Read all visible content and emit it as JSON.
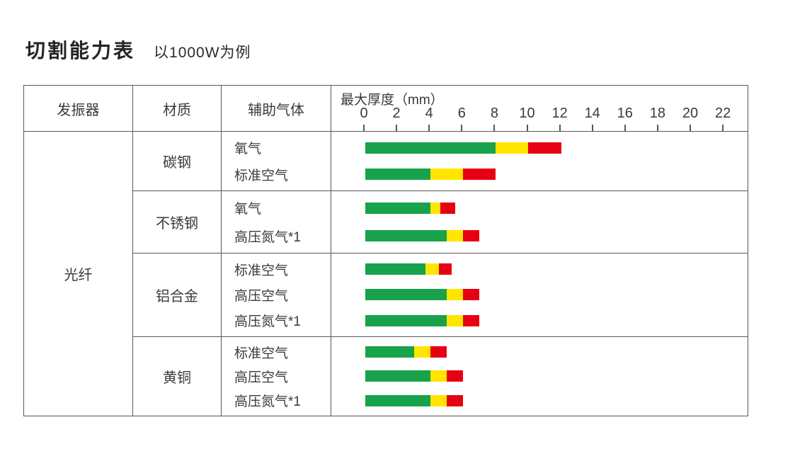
{
  "title": "切割能力表",
  "subtitle": "以1000W为例",
  "colors": {
    "green": "#18a24b",
    "yellow": "#ffe500",
    "red": "#e60012",
    "line": "#595757",
    "text": "#3a3a3a"
  },
  "table": {
    "headers": {
      "oscillator": "发振器",
      "material": "材质",
      "gas": "辅助气体",
      "thickness": "最大厚度（mm）"
    },
    "oscillator": "光纤",
    "axis": {
      "ticks": [
        0,
        2,
        4,
        6,
        8,
        10,
        12,
        14,
        16,
        18,
        20,
        22
      ],
      "unit": "mm",
      "max": 22
    },
    "groups": [
      {
        "material": "碳钢",
        "rows": [
          {
            "gas": "氧气",
            "segments": [
              {
                "color": "green",
                "from": 0,
                "to": 8
              },
              {
                "color": "yellow",
                "from": 8,
                "to": 10
              },
              {
                "color": "red",
                "from": 10,
                "to": 12
              }
            ]
          },
          {
            "gas": "标准空气",
            "segments": [
              {
                "color": "green",
                "from": 0,
                "to": 4
              },
              {
                "color": "yellow",
                "from": 4,
                "to": 6
              },
              {
                "color": "red",
                "from": 6,
                "to": 8
              }
            ]
          }
        ]
      },
      {
        "material": "不锈钢",
        "rows": [
          {
            "gas": "氧气",
            "segments": [
              {
                "color": "green",
                "from": 0,
                "to": 4
              },
              {
                "color": "yellow",
                "from": 4,
                "to": 4.6
              },
              {
                "color": "red",
                "from": 4.6,
                "to": 5.5
              }
            ]
          },
          {
            "gas": "高压氮气*1",
            "segments": [
              {
                "color": "green",
                "from": 0,
                "to": 5
              },
              {
                "color": "yellow",
                "from": 5,
                "to": 6
              },
              {
                "color": "red",
                "from": 6,
                "to": 7
              }
            ]
          }
        ]
      },
      {
        "material": "铝合金",
        "rows": [
          {
            "gas": "标准空气",
            "segments": [
              {
                "color": "green",
                "from": 0,
                "to": 3.7
              },
              {
                "color": "yellow",
                "from": 3.7,
                "to": 4.5
              },
              {
                "color": "red",
                "from": 4.5,
                "to": 5.3
              }
            ]
          },
          {
            "gas": "高压空气",
            "segments": [
              {
                "color": "green",
                "from": 0,
                "to": 5
              },
              {
                "color": "yellow",
                "from": 5,
                "to": 6
              },
              {
                "color": "red",
                "from": 6,
                "to": 7
              }
            ]
          },
          {
            "gas": "高压氮气*1",
            "segments": [
              {
                "color": "green",
                "from": 0,
                "to": 5
              },
              {
                "color": "yellow",
                "from": 5,
                "to": 6
              },
              {
                "color": "red",
                "from": 6,
                "to": 7
              }
            ]
          }
        ]
      },
      {
        "material": "黄铜",
        "rows": [
          {
            "gas": "标准空气",
            "segments": [
              {
                "color": "green",
                "from": 0,
                "to": 3
              },
              {
                "color": "yellow",
                "from": 3,
                "to": 4
              },
              {
                "color": "red",
                "from": 4,
                "to": 5
              }
            ]
          },
          {
            "gas": "高压空气",
            "segments": [
              {
                "color": "green",
                "from": 0,
                "to": 4
              },
              {
                "color": "yellow",
                "from": 4,
                "to": 5
              },
              {
                "color": "red",
                "from": 5,
                "to": 6
              }
            ]
          },
          {
            "gas": "高压氮气*1",
            "segments": [
              {
                "color": "green",
                "from": 0,
                "to": 4
              },
              {
                "color": "yellow",
                "from": 4,
                "to": 5
              },
              {
                "color": "red",
                "from": 5,
                "to": 6
              }
            ]
          }
        ]
      }
    ]
  },
  "chart_data": {
    "type": "bar",
    "title": "切割能力表 以1000W为例",
    "xlabel": "最大厚度（mm）",
    "xlim": [
      0,
      22
    ],
    "x_ticks": [
      0,
      2,
      4,
      6,
      8,
      10,
      12,
      14,
      16,
      18,
      20,
      22
    ],
    "stacked": true,
    "orientation": "horizontal",
    "grid": false,
    "legend": false,
    "segment_colors": {
      "green": "#18a24b",
      "yellow": "#ffe500",
      "red": "#e60012"
    },
    "bars": [
      {
        "oscillator": "光纤",
        "material": "碳钢",
        "gas": "氧气",
        "green_to": 8,
        "yellow_to": 10,
        "red_to": 12
      },
      {
        "oscillator": "光纤",
        "material": "碳钢",
        "gas": "标准空气",
        "green_to": 4,
        "yellow_to": 6,
        "red_to": 8
      },
      {
        "oscillator": "光纤",
        "material": "不锈钢",
        "gas": "氧气",
        "green_to": 4,
        "yellow_to": 4.6,
        "red_to": 5.5
      },
      {
        "oscillator": "光纤",
        "material": "不锈钢",
        "gas": "高压氮气*1",
        "green_to": 5,
        "yellow_to": 6,
        "red_to": 7
      },
      {
        "oscillator": "光纤",
        "material": "铝合金",
        "gas": "标准空气",
        "green_to": 3.7,
        "yellow_to": 4.5,
        "red_to": 5.3
      },
      {
        "oscillator": "光纤",
        "material": "铝合金",
        "gas": "高压空气",
        "green_to": 5,
        "yellow_to": 6,
        "red_to": 7
      },
      {
        "oscillator": "光纤",
        "material": "铝合金",
        "gas": "高压氮气*1",
        "green_to": 5,
        "yellow_to": 6,
        "red_to": 7
      },
      {
        "oscillator": "光纤",
        "material": "黄铜",
        "gas": "标准空气",
        "green_to": 3,
        "yellow_to": 4,
        "red_to": 5
      },
      {
        "oscillator": "光纤",
        "material": "黄铜",
        "gas": "高压空气",
        "green_to": 4,
        "yellow_to": 5,
        "red_to": 6
      },
      {
        "oscillator": "光纤",
        "material": "黄铜",
        "gas": "高压氮气*1",
        "green_to": 4,
        "yellow_to": 5,
        "red_to": 6
      }
    ]
  }
}
